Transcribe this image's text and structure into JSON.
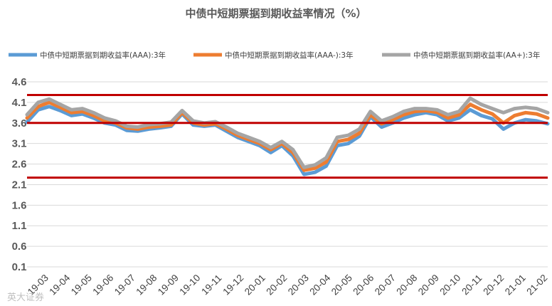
{
  "chart_data": {
    "type": "line",
    "title": "中债中短期票据到期收益率情况（%）",
    "ylim": [
      0.1,
      4.6
    ],
    "yticks": [
      "4.6",
      "4.1",
      "3.6",
      "3.1",
      "2.6",
      "2.1",
      "1.6",
      "1.1",
      "0.6",
      "0.1"
    ],
    "ytick_values": [
      4.6,
      4.1,
      3.6,
      3.1,
      2.6,
      2.1,
      1.6,
      1.1,
      0.6,
      0.1
    ],
    "xticks": [
      "19-03",
      "19-04",
      "19-05",
      "19-06",
      "19-07",
      "19-08",
      "19-09",
      "19-10",
      "19-11",
      "19-12",
      "20-01",
      "20-02",
      "20-03",
      "20-04",
      "20-05",
      "20-06",
      "20-07",
      "20-08",
      "20-09",
      "20-10",
      "20-11",
      "20-12",
      "21-01",
      "21-02"
    ],
    "grid": true,
    "legend_position": "top",
    "reference_lines": [
      {
        "value": 4.28,
        "color": "#c00000"
      },
      {
        "value": 3.6,
        "color": "#c00000"
      },
      {
        "value": 2.27,
        "color": "#c00000"
      }
    ],
    "x": [
      "19-03",
      "19-03b",
      "19-04",
      "19-04b",
      "19-05",
      "19-05b",
      "19-06",
      "19-06b",
      "19-07",
      "19-07b",
      "19-08",
      "19-08b",
      "19-09",
      "19-09b",
      "19-10",
      "19-10b",
      "19-11",
      "19-11b",
      "19-12",
      "19-12b",
      "20-01",
      "20-01b",
      "20-02",
      "20-02b",
      "20-03",
      "20-03b",
      "20-04",
      "20-04b",
      "20-05",
      "20-05b",
      "20-06",
      "20-06b",
      "20-07",
      "20-07b",
      "20-08",
      "20-08b",
      "20-09",
      "20-09b",
      "20-10",
      "20-10b",
      "20-11",
      "20-11b",
      "20-12",
      "20-12b",
      "21-01",
      "21-01b",
      "21-02",
      "21-02b"
    ],
    "series": [
      {
        "name": "中债中短期票据到期收益率(AAA):3年",
        "color": "#5b9bd5",
        "values": [
          3.62,
          3.92,
          4.0,
          3.9,
          3.78,
          3.82,
          3.72,
          3.6,
          3.55,
          3.42,
          3.4,
          3.45,
          3.48,
          3.52,
          3.82,
          3.55,
          3.52,
          3.55,
          3.4,
          3.25,
          3.15,
          3.05,
          2.88,
          3.05,
          2.8,
          2.35,
          2.4,
          2.55,
          3.05,
          3.1,
          3.28,
          3.75,
          3.5,
          3.6,
          3.72,
          3.8,
          3.85,
          3.8,
          3.65,
          3.72,
          3.92,
          3.78,
          3.7,
          3.45,
          3.6,
          3.68,
          3.65,
          3.58
        ]
      },
      {
        "name": "中债中短期票据到期收益率(AAA-):3年",
        "color": "#ed7d31",
        "values": [
          3.72,
          4.0,
          4.1,
          3.98,
          3.85,
          3.88,
          3.78,
          3.65,
          3.6,
          3.48,
          3.45,
          3.5,
          3.52,
          3.55,
          3.85,
          3.6,
          3.55,
          3.58,
          3.45,
          3.3,
          3.2,
          3.1,
          2.95,
          3.1,
          2.88,
          2.45,
          2.5,
          2.65,
          3.15,
          3.2,
          3.35,
          3.8,
          3.58,
          3.68,
          3.8,
          3.88,
          3.9,
          3.86,
          3.72,
          3.8,
          4.05,
          3.92,
          3.82,
          3.6,
          3.78,
          3.85,
          3.82,
          3.72
        ]
      },
      {
        "name": "中债中短期票据到期收益率(AA+):3年",
        "color": "#a5a5a5",
        "values": [
          3.8,
          4.1,
          4.18,
          4.05,
          3.92,
          3.95,
          3.85,
          3.72,
          3.65,
          3.52,
          3.5,
          3.56,
          3.58,
          3.62,
          3.9,
          3.65,
          3.6,
          3.63,
          3.5,
          3.35,
          3.25,
          3.15,
          3.0,
          3.15,
          2.95,
          2.52,
          2.58,
          2.75,
          3.25,
          3.3,
          3.45,
          3.88,
          3.65,
          3.75,
          3.88,
          3.95,
          3.95,
          3.92,
          3.8,
          3.88,
          4.2,
          4.05,
          3.95,
          3.85,
          3.95,
          3.98,
          3.95,
          3.85
        ]
      }
    ]
  },
  "watermark": "英大证券"
}
